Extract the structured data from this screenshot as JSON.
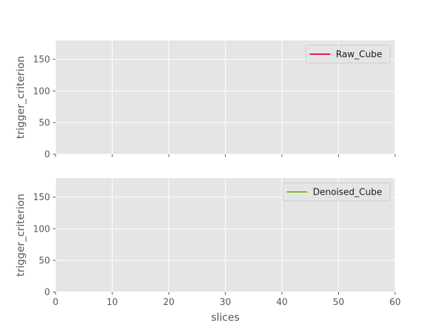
{
  "chart_data": [
    {
      "type": "line",
      "title": "",
      "xlabel": "",
      "ylabel": "trigger_criterion",
      "xlim": [
        0,
        60
      ],
      "ylim": [
        0,
        180
      ],
      "xticks": [
        0,
        10,
        20,
        30,
        40,
        50,
        60
      ],
      "yticks": [
        0,
        50,
        100,
        150
      ],
      "show_xtick_labels": false,
      "grid": true,
      "legend_position": "top-right",
      "series": [
        {
          "name": "Raw_Cube",
          "color": "#dc143c",
          "x": [],
          "y": []
        }
      ]
    },
    {
      "type": "line",
      "title": "",
      "xlabel": "slices",
      "ylabel": "trigger_criterion",
      "xlim": [
        0,
        60
      ],
      "ylim": [
        0,
        180
      ],
      "xticks": [
        0,
        10,
        20,
        30,
        40,
        50,
        60
      ],
      "yticks": [
        0,
        50,
        100,
        150
      ],
      "show_xtick_labels": true,
      "grid": true,
      "legend_position": "top-right",
      "series": [
        {
          "name": "Denoised_Cube",
          "color": "#7cb518",
          "x": [],
          "y": []
        }
      ]
    }
  ],
  "colors": {
    "axes_background": "#e5e5e5",
    "grid": "#ffffff",
    "tick_text": "#555555",
    "legend_frame": "#cccccc"
  }
}
